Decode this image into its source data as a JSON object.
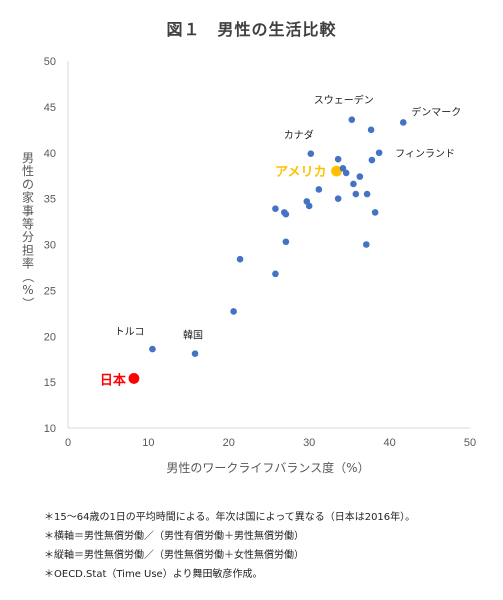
{
  "title": "図１　男性の生活比較",
  "chart_data": {
    "type": "scatter",
    "xlabel": "男性のワークライフバランス度（%）",
    "ylabel": "男性の家事等分担率（%）",
    "xlim": [
      0,
      50
    ],
    "ylim": [
      10,
      50
    ],
    "x_ticks": [
      0,
      10,
      20,
      30,
      40,
      50
    ],
    "y_ticks": [
      10,
      15,
      20,
      25,
      30,
      35,
      40,
      45,
      50
    ],
    "grid": false,
    "colors": {
      "default": "#4472C4",
      "usa": "#FFC000",
      "japan": "#FF0000"
    },
    "points": [
      {
        "x": 8.2,
        "y": 15.4,
        "label": "日本",
        "group": "japan"
      },
      {
        "x": 33.4,
        "y": 38.0,
        "label": "アメリカ",
        "group": "usa"
      },
      {
        "x": 10.5,
        "y": 18.6,
        "label": "トルコ",
        "group": "default"
      },
      {
        "x": 15.8,
        "y": 18.1,
        "label": "韓国",
        "group": "default"
      },
      {
        "x": 35.3,
        "y": 43.6,
        "label": "スウェーデン",
        "group": "default"
      },
      {
        "x": 41.7,
        "y": 43.3,
        "label": "デンマーク",
        "group": "default"
      },
      {
        "x": 30.2,
        "y": 39.9,
        "label": "カナダ",
        "group": "default"
      },
      {
        "x": 38.7,
        "y": 40.0,
        "label": "フィンランド",
        "group": "default"
      },
      {
        "x": 37.7,
        "y": 42.5,
        "group": "default"
      },
      {
        "x": 33.6,
        "y": 39.3,
        "group": "default"
      },
      {
        "x": 34.2,
        "y": 38.3,
        "group": "default"
      },
      {
        "x": 34.6,
        "y": 37.8,
        "group": "default"
      },
      {
        "x": 36.3,
        "y": 37.4,
        "group": "default"
      },
      {
        "x": 37.8,
        "y": 39.2,
        "group": "default"
      },
      {
        "x": 35.5,
        "y": 36.6,
        "group": "default"
      },
      {
        "x": 31.2,
        "y": 36.0,
        "group": "default"
      },
      {
        "x": 35.8,
        "y": 35.5,
        "group": "default"
      },
      {
        "x": 37.2,
        "y": 35.5,
        "group": "default"
      },
      {
        "x": 33.6,
        "y": 35.0,
        "group": "default"
      },
      {
        "x": 29.7,
        "y": 34.7,
        "group": "default"
      },
      {
        "x": 30.0,
        "y": 34.2,
        "group": "default"
      },
      {
        "x": 25.8,
        "y": 33.9,
        "group": "default"
      },
      {
        "x": 26.9,
        "y": 33.5,
        "group": "default"
      },
      {
        "x": 27.1,
        "y": 33.3,
        "group": "default"
      },
      {
        "x": 38.2,
        "y": 33.5,
        "group": "default"
      },
      {
        "x": 27.1,
        "y": 30.3,
        "group": "default"
      },
      {
        "x": 37.1,
        "y": 30.0,
        "group": "default"
      },
      {
        "x": 21.4,
        "y": 28.4,
        "group": "default"
      },
      {
        "x": 25.8,
        "y": 26.8,
        "group": "default"
      },
      {
        "x": 20.6,
        "y": 22.7,
        "group": "default"
      }
    ]
  },
  "notes": [
    "＊15～64歳の1日の平均時間による。年次は国によって異なる（日本は2016年）。",
    "＊横軸＝男性無償労働／（男性有償労働＋男性無償労働）",
    "＊縦軸＝男性無償労働／（男性無償労働＋女性無償労働）",
    "＊OECD.Stat（Time Use）より舞田敏彦作成。"
  ]
}
